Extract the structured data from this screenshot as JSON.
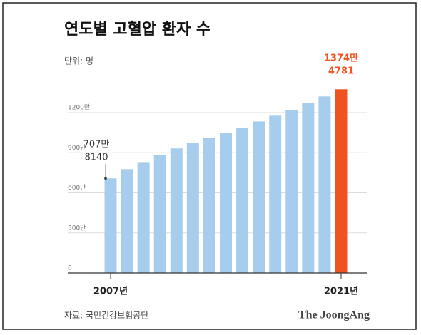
{
  "chart_data": {
    "type": "bar",
    "title": "연도별 고혈압 환자 수",
    "subtitle": "단위: 명",
    "source": "자료: 국민건강보험공단",
    "brand": "The JoongAng",
    "categories": [
      "2007년",
      null,
      null,
      null,
      null,
      null,
      null,
      null,
      null,
      null,
      null,
      null,
      null,
      null,
      "2021년"
    ],
    "values": [
      707.814,
      777,
      830,
      884,
      932,
      974,
      1012,
      1049,
      1086,
      1134,
      1177,
      1220,
      1273,
      1321,
      1374.4781
    ],
    "value_labels": [
      [
        "707만",
        "8140"
      ],
      null,
      null,
      null,
      null,
      null,
      null,
      null,
      null,
      null,
      null,
      null,
      null,
      null,
      [
        "1374만",
        "4781"
      ]
    ],
    "colors": [
      "#a7cdee",
      "#a7cdee",
      "#a7cdee",
      "#a7cdee",
      "#a7cdee",
      "#a7cdee",
      "#a7cdee",
      "#a7cdee",
      "#a7cdee",
      "#a7cdee",
      "#a7cdee",
      "#a7cdee",
      "#a7cdee",
      "#a7cdee",
      "#f0531f"
    ],
    "ylim": [
      0,
      1400
    ],
    "yticks": [
      0,
      {
        "value": 300,
        "label": "300만"
      },
      {
        "value": 600,
        "label": "600만"
      },
      {
        "value": 900,
        "label": "900만"
      },
      {
        "value": 1200,
        "label": "1200만"
      }
    ],
    "grid": true
  }
}
